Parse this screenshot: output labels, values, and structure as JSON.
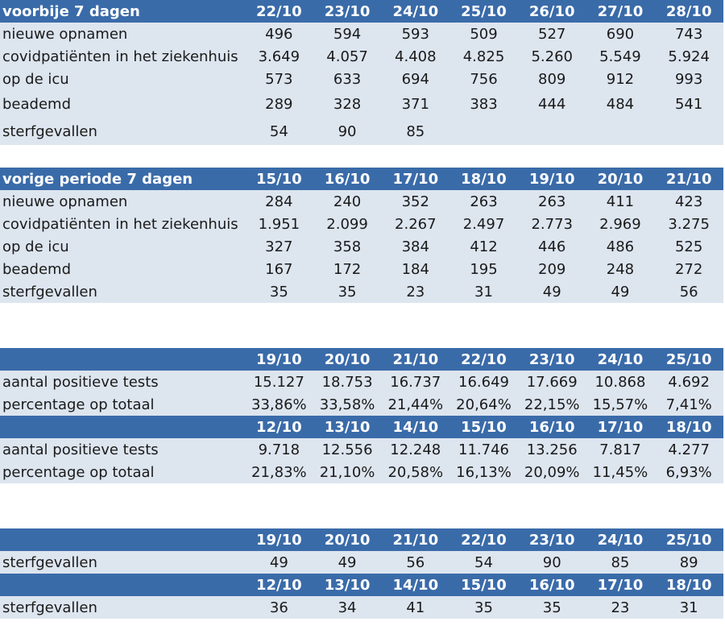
{
  "block1": {
    "header": {
      "label": "voorbije 7 dagen",
      "cols": [
        "22/10",
        "23/10",
        "24/10",
        "25/10",
        "26/10",
        "27/10",
        "28/10"
      ]
    },
    "rows": [
      {
        "label": "nieuwe opnamen",
        "values": [
          "496",
          "594",
          "593",
          "509",
          "527",
          "690",
          "743"
        ]
      },
      {
        "label": "covidpatiënten in het ziekenhuis",
        "values": [
          "3.649",
          "4.057",
          "4.408",
          "4.825",
          "5.260",
          "5.549",
          "5.924"
        ]
      },
      {
        "label": "op de icu",
        "values": [
          "573",
          "633",
          "694",
          "756",
          "809",
          "912",
          "993"
        ]
      },
      {
        "label": "beademd",
        "values": [
          "289",
          "328",
          "371",
          "383",
          "444",
          "484",
          "541"
        ]
      },
      {
        "label": "sterfgevallen",
        "values": [
          "54",
          "90",
          "85",
          "",
          "",
          "",
          ""
        ]
      }
    ]
  },
  "block2": {
    "header": {
      "label": "vorige periode 7 dagen",
      "cols": [
        "15/10",
        "16/10",
        "17/10",
        "18/10",
        "19/10",
        "20/10",
        "21/10"
      ]
    },
    "rows": [
      {
        "label": "nieuwe opnamen",
        "values": [
          "284",
          "240",
          "352",
          "263",
          "263",
          "411",
          "423"
        ]
      },
      {
        "label": "covidpatiënten in het ziekenhuis",
        "values": [
          "1.951",
          "2.099",
          "2.267",
          "2.497",
          "2.773",
          "2.969",
          "3.275"
        ]
      },
      {
        "label": "op de icu",
        "values": [
          "327",
          "358",
          "384",
          "412",
          "446",
          "486",
          "525"
        ]
      },
      {
        "label": "beademd",
        "values": [
          "167",
          "172",
          "184",
          "195",
          "209",
          "248",
          "272"
        ]
      },
      {
        "label": "sterfgevallen",
        "values": [
          "35",
          "35",
          "23",
          "31",
          "49",
          "49",
          "56"
        ]
      }
    ]
  },
  "block3": {
    "header1": {
      "label": "",
      "cols": [
        "19/10",
        "20/10",
        "21/10",
        "22/10",
        "23/10",
        "24/10",
        "25/10"
      ]
    },
    "rows1": [
      {
        "label": "aantal positieve tests",
        "values": [
          "15.127",
          "18.753",
          "16.737",
          "16.649",
          "17.669",
          "10.868",
          "4.692"
        ]
      },
      {
        "label": "percentage op totaal",
        "values": [
          "33,86%",
          "33,58%",
          "21,44%",
          "20,64%",
          "22,15%",
          "15,57%",
          "7,41%"
        ]
      }
    ],
    "header2": {
      "label": "",
      "cols": [
        "12/10",
        "13/10",
        "14/10",
        "15/10",
        "16/10",
        "17/10",
        "18/10"
      ]
    },
    "rows2": [
      {
        "label": "aantal positieve tests",
        "values": [
          "9.718",
          "12.556",
          "12.248",
          "11.746",
          "13.256",
          "7.817",
          "4.277"
        ]
      },
      {
        "label": "percentage op totaal",
        "values": [
          "21,83%",
          "21,10%",
          "20,58%",
          "16,13%",
          "20,09%",
          "11,45%",
          "6,93%"
        ]
      }
    ]
  },
  "block4": {
    "header1": {
      "label": "",
      "cols": [
        "19/10",
        "20/10",
        "21/10",
        "22/10",
        "23/10",
        "24/10",
        "25/10"
      ]
    },
    "rows1": [
      {
        "label": "sterfgevallen",
        "values": [
          "49",
          "49",
          "56",
          "54",
          "90",
          "85",
          "89"
        ]
      }
    ],
    "header2": {
      "label": "",
      "cols": [
        "12/10",
        "13/10",
        "14/10",
        "15/10",
        "16/10",
        "17/10",
        "18/10"
      ]
    },
    "rows2": [
      {
        "label": "sterfgevallen",
        "values": [
          "36",
          "34",
          "41",
          "35",
          "35",
          "23",
          "31"
        ]
      }
    ]
  }
}
